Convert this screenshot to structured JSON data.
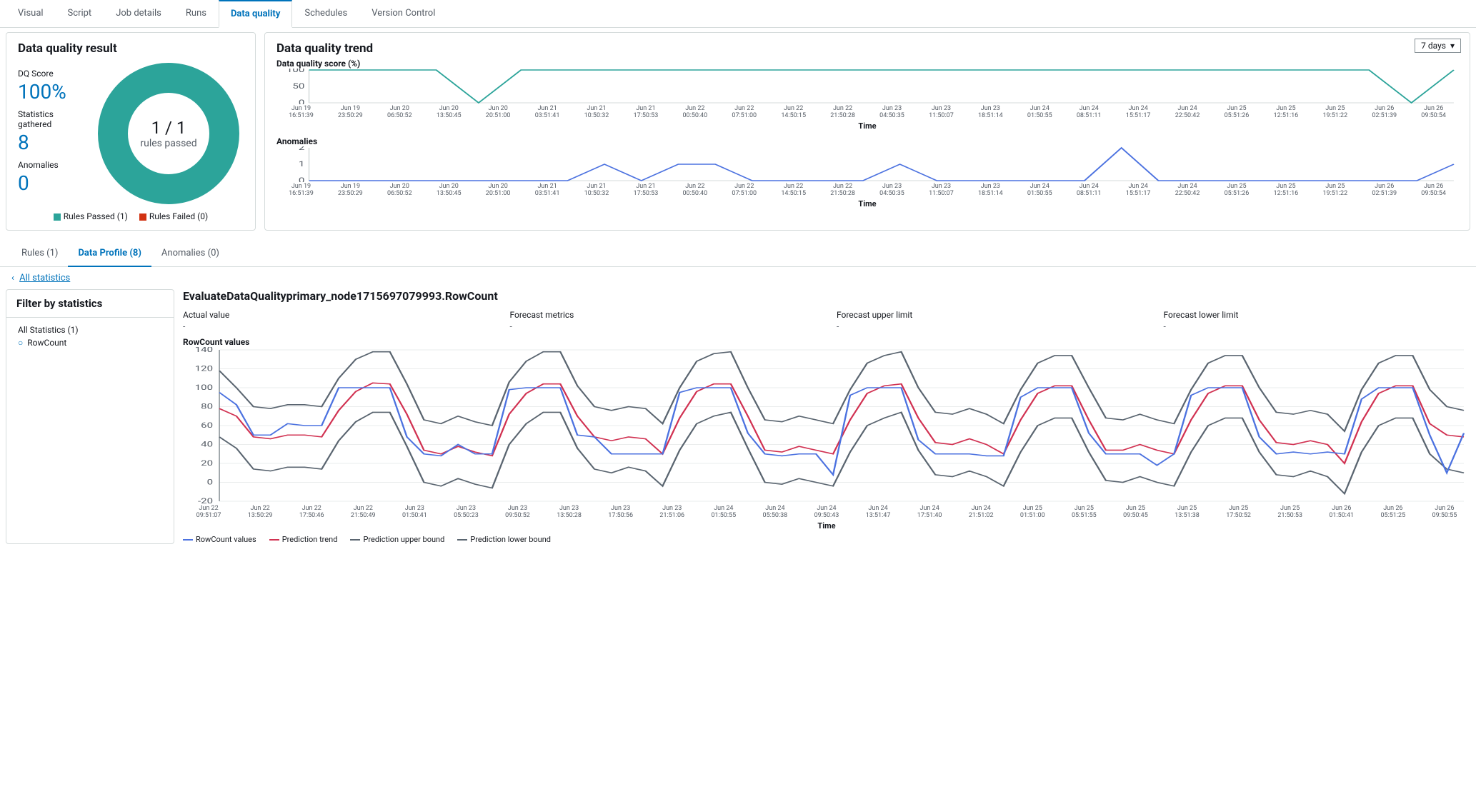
{
  "topTabs": [
    "Visual",
    "Script",
    "Job details",
    "Runs",
    "Data quality",
    "Schedules",
    "Version Control"
  ],
  "topTabActive": 4,
  "dqResult": {
    "title": "Data quality result",
    "stats": [
      {
        "label": "DQ Score",
        "value": "100%"
      },
      {
        "label": "Statistics gathered",
        "value": "8"
      },
      {
        "label": "Anomalies",
        "value": "0"
      }
    ],
    "donut": {
      "ratio": "1 / 1",
      "sub": "rules passed",
      "color": "#2ca49a",
      "legend": [
        {
          "label": "Rules Passed (1)",
          "color": "#2ca49a"
        },
        {
          "label": "Rules Failed (0)",
          "color": "#d13212"
        }
      ]
    }
  },
  "dqTrend": {
    "title": "Data quality trend",
    "range": "7 days",
    "scoreChart": {
      "title": "Data quality score (%)",
      "ylabels": [
        "100",
        "50",
        "0"
      ],
      "ymin": 0,
      "ymax": 100,
      "color": "#2ca49a",
      "points": [
        100,
        100,
        100,
        100,
        0,
        100,
        100,
        100,
        100,
        100,
        100,
        100,
        100,
        100,
        100,
        100,
        100,
        100,
        100,
        100,
        100,
        100,
        100,
        100,
        100,
        100,
        0,
        100
      ],
      "xticks": [
        "Jun 19\n16:51:39",
        "Jun 19\n23:50:29",
        "Jun 20\n06:50:52",
        "Jun 20\n13:50:45",
        "Jun 20\n20:51:00",
        "Jun 21\n03:51:41",
        "Jun 21\n10:50:32",
        "Jun 21\n17:50:53",
        "Jun 22\n00:50:40",
        "Jun 22\n07:51:00",
        "Jun 22\n14:50:15",
        "Jun 22\n21:50:28",
        "Jun 23\n04:50:35",
        "Jun 23\n11:50:07",
        "Jun 23\n18:51:14",
        "Jun 24\n01:50:55",
        "Jun 24\n08:51:11",
        "Jun 24\n15:51:17",
        "Jun 24\n22:50:42",
        "Jun 25\n05:51:26",
        "Jun 25\n12:51:16",
        "Jun 25\n19:51:22",
        "Jun 26\n02:51:39",
        "Jun 26\n09:50:54"
      ],
      "timeLabel": "Time"
    },
    "anomalyChart": {
      "title": "Anomalies",
      "ylabels": [
        "2",
        "1",
        "0"
      ],
      "ymin": 0,
      "ymax": 2,
      "color": "#4c72e0",
      "points": [
        0,
        0,
        0,
        0,
        0,
        0,
        0,
        0,
        1,
        0,
        1,
        1,
        0,
        0,
        0,
        0,
        1,
        0,
        0,
        0,
        0,
        0,
        2,
        0,
        0,
        0,
        0,
        0,
        0,
        0,
        0,
        1
      ],
      "xticks": [
        "Jun 19\n16:51:39",
        "Jun 19\n23:50:29",
        "Jun 20\n06:50:52",
        "Jun 20\n13:50:45",
        "Jun 20\n20:51:00",
        "Jun 21\n03:51:41",
        "Jun 21\n10:50:32",
        "Jun 21\n17:50:53",
        "Jun 22\n00:50:40",
        "Jun 22\n07:51:00",
        "Jun 22\n14:50:15",
        "Jun 22\n21:50:28",
        "Jun 23\n04:50:35",
        "Jun 23\n11:50:07",
        "Jun 23\n18:51:14",
        "Jun 24\n01:50:55",
        "Jun 24\n08:51:11",
        "Jun 24\n15:51:17",
        "Jun 24\n22:50:42",
        "Jun 25\n05:51:26",
        "Jun 25\n12:51:16",
        "Jun 25\n19:51:22",
        "Jun 26\n02:51:39",
        "Jun 26\n09:50:54"
      ],
      "timeLabel": "Time"
    }
  },
  "subTabs": [
    "Rules (1)",
    "Data Profile (8)",
    "Anomalies (0)"
  ],
  "subTabActive": 1,
  "backLink": "All statistics",
  "filter": {
    "title": "Filter by statistics",
    "group": "All Statistics (1)",
    "selected": "RowCount"
  },
  "detail": {
    "title": "EvaluateDataQualityprimary_node1715697079993.RowCount",
    "metrics": [
      {
        "label": "Actual value",
        "value": "-"
      },
      {
        "label": "Forecast metrics",
        "value": "-"
      },
      {
        "label": "Forecast upper limit",
        "value": "-"
      },
      {
        "label": "Forecast lower limit",
        "value": "-"
      }
    ],
    "chart": {
      "title": "RowCount values",
      "ymin": -20,
      "ymax": 140,
      "ystep": 20,
      "ylabels": [
        "140",
        "120",
        "100",
        "80",
        "60",
        "40",
        "20",
        "0",
        "-20"
      ],
      "timeLabel": "Time",
      "xticks": [
        "Jun 22\n09:51:07",
        "Jun 22\n13:50:29",
        "Jun 22\n17:50:46",
        "Jun 22\n21:50:49",
        "Jun 23\n01:50:41",
        "Jun 23\n05:50:23",
        "Jun 23\n09:50:52",
        "Jun 23\n13:50:28",
        "Jun 23\n17:50:56",
        "Jun 23\n21:51:06",
        "Jun 24\n01:50:55",
        "Jun 24\n05:50:38",
        "Jun 24\n09:50:43",
        "Jun 24\n13:51:47",
        "Jun 24\n17:51:40",
        "Jun 24\n21:51:02",
        "Jun 25\n01:51:00",
        "Jun 25\n05:51:55",
        "Jun 25\n09:50:45",
        "Jun 25\n13:51:38",
        "Jun 25\n17:50:52",
        "Jun 25\n21:50:53",
        "Jun 26\n01:50:41",
        "Jun 26\n05:51:25",
        "Jun 26\n09:50:55"
      ],
      "series": {
        "actual": {
          "label": "RowCount values",
          "color": "#4c72e0",
          "data": [
            95,
            82,
            50,
            50,
            62,
            60,
            60,
            100,
            100,
            100,
            100,
            48,
            30,
            28,
            40,
            30,
            30,
            98,
            100,
            100,
            100,
            50,
            48,
            30,
            30,
            30,
            30,
            95,
            100,
            100,
            100,
            52,
            30,
            28,
            30,
            30,
            8,
            92,
            100,
            100,
            100,
            45,
            30,
            30,
            30,
            28,
            28,
            90,
            100,
            100,
            100,
            52,
            30,
            30,
            30,
            18,
            30,
            92,
            100,
            100,
            100,
            48,
            30,
            32,
            30,
            32,
            30,
            88,
            100,
            100,
            100,
            50,
            10,
            52
          ]
        },
        "pred": {
          "label": "Prediction trend",
          "color": "#d13252",
          "data": [
            78,
            70,
            48,
            46,
            50,
            50,
            48,
            76,
            96,
            105,
            104,
            72,
            34,
            30,
            38,
            32,
            28,
            72,
            94,
            104,
            104,
            70,
            48,
            44,
            48,
            46,
            30,
            68,
            96,
            104,
            104,
            70,
            34,
            32,
            38,
            34,
            30,
            66,
            94,
            102,
            104,
            68,
            42,
            40,
            46,
            40,
            30,
            66,
            94,
            102,
            102,
            66,
            34,
            34,
            40,
            34,
            30,
            66,
            94,
            102,
            102,
            66,
            42,
            40,
            44,
            40,
            20,
            64,
            94,
            102,
            102,
            62,
            50,
            48
          ]
        },
        "upper": {
          "label": "Prediction upper bound",
          "color": "#5a6570",
          "data": [
            118,
            100,
            80,
            78,
            82,
            82,
            80,
            110,
            130,
            138,
            138,
            104,
            66,
            62,
            70,
            64,
            60,
            106,
            128,
            138,
            138,
            102,
            80,
            76,
            80,
            78,
            62,
            100,
            128,
            136,
            138,
            100,
            66,
            64,
            70,
            66,
            62,
            98,
            126,
            134,
            138,
            100,
            74,
            72,
            78,
            72,
            62,
            98,
            126,
            134,
            134,
            100,
            68,
            66,
            72,
            66,
            62,
            98,
            126,
            134,
            134,
            100,
            74,
            72,
            76,
            72,
            54,
            98,
            126,
            134,
            134,
            98,
            80,
            76
          ]
        },
        "lower": {
          "label": "Prediction lower bound",
          "color": "#5a6570",
          "data": [
            48,
            36,
            14,
            12,
            16,
            16,
            14,
            44,
            64,
            74,
            74,
            38,
            0,
            -4,
            4,
            -2,
            -6,
            40,
            62,
            74,
            74,
            36,
            14,
            10,
            16,
            12,
            -4,
            34,
            62,
            70,
            74,
            36,
            0,
            -2,
            4,
            0,
            -4,
            32,
            60,
            68,
            74,
            34,
            8,
            6,
            12,
            6,
            -4,
            32,
            60,
            68,
            68,
            32,
            2,
            0,
            6,
            0,
            -4,
            32,
            60,
            68,
            68,
            32,
            8,
            6,
            12,
            6,
            -12,
            32,
            60,
            68,
            68,
            30,
            14,
            10
          ]
        }
      },
      "legendOrder": [
        "actual",
        "pred",
        "upper",
        "lower"
      ]
    }
  }
}
